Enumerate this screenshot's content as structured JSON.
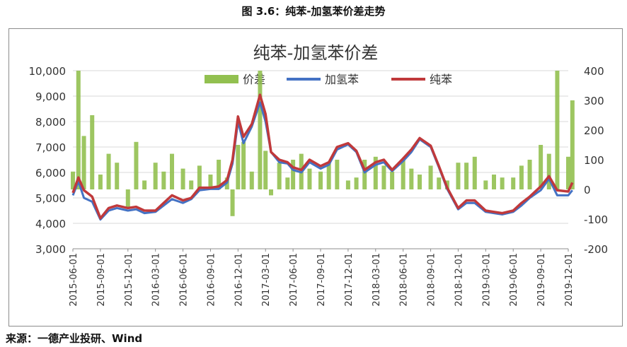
{
  "figure_caption": "图 3.6：纯苯-加氢苯价差走势",
  "source_note": "来源：一德产业投研、Wind",
  "colors": {
    "spread": "#92c050",
    "hydro": "#4472c4",
    "pure": "#c0393b"
  },
  "chart_data": {
    "type": "line",
    "title": "纯苯-加氢苯价差",
    "legend": {
      "placement": "top",
      "entries": [
        "价差",
        "加氢苯",
        "纯苯"
      ]
    },
    "y_left": {
      "min": 3000,
      "max": 10000,
      "ticks": [
        "3,000",
        "4,000",
        "5,000",
        "6,000",
        "7,000",
        "8,000",
        "9,000",
        "10,000"
      ]
    },
    "y_right": {
      "min": -200,
      "max": 400,
      "ticks": [
        "-200",
        "-100",
        "0",
        "100",
        "200",
        "300",
        "400"
      ]
    },
    "x_ticks": [
      "2015-06-01",
      "2015-09-01",
      "2015-12-01",
      "2016-03-01",
      "2016-06-01",
      "2016-09-01",
      "2016-12-01",
      "2017-03-01",
      "2017-06-01",
      "2017-09-01",
      "2017-12-01",
      "2018-03-01",
      "2018-06-01",
      "2018-09-01",
      "2018-12-01",
      "2019-03-01",
      "2019-06-01",
      "2019-09-01",
      "2019-12-01"
    ],
    "grid": true,
    "series": [
      {
        "name": "纯苯",
        "axis": "left",
        "type": "line",
        "x": [
          0,
          0.2,
          0.4,
          0.7,
          1,
          1.3,
          1.6,
          2,
          2.3,
          2.6,
          3,
          3.3,
          3.6,
          4,
          4.3,
          4.6,
          5,
          5.3,
          5.6,
          5.8,
          6,
          6.2,
          6.5,
          6.8,
          7,
          7.2,
          7.5,
          7.8,
          8,
          8.3,
          8.6,
          9,
          9.3,
          9.6,
          10,
          10.3,
          10.6,
          11,
          11.3,
          11.6,
          12,
          12.3,
          12.6,
          13,
          13.3,
          13.6,
          14,
          14.3,
          14.6,
          15,
          15.3,
          15.6,
          16,
          16.3,
          16.6,
          17,
          17.3,
          17.6,
          18,
          18.15
        ],
        "y": [
          5200,
          5800,
          5300,
          5050,
          4200,
          4600,
          4700,
          4600,
          4650,
          4500,
          4500,
          4800,
          5100,
          4900,
          5000,
          5400,
          5400,
          5450,
          5700,
          6500,
          8200,
          7400,
          7900,
          9050,
          8300,
          6800,
          6500,
          6400,
          6200,
          6100,
          6500,
          6250,
          6400,
          7000,
          7150,
          6850,
          6100,
          6400,
          6500,
          6100,
          6550,
          6900,
          7350,
          7050,
          6250,
          5400,
          4600,
          4900,
          4900,
          4500,
          4450,
          4400,
          4500,
          4800,
          5050,
          5450,
          5850,
          5300,
          5250,
          5600
        ]
      },
      {
        "name": "加氢苯",
        "axis": "left",
        "type": "line",
        "x": [
          0,
          0.2,
          0.4,
          0.7,
          1,
          1.3,
          1.6,
          2,
          2.3,
          2.6,
          3,
          3.3,
          3.6,
          4,
          4.3,
          4.6,
          5,
          5.3,
          5.6,
          5.8,
          6,
          6.2,
          6.5,
          6.8,
          7,
          7.2,
          7.5,
          7.8,
          8,
          8.3,
          8.6,
          9,
          9.3,
          9.6,
          10,
          10.3,
          10.6,
          11,
          11.3,
          11.6,
          12,
          12.3,
          12.6,
          13,
          13.3,
          13.6,
          14,
          14.3,
          14.6,
          15,
          15.3,
          15.6,
          16,
          16.3,
          16.6,
          17,
          17.3,
          17.6,
          18,
          18.15
        ],
        "y": [
          5100,
          5650,
          5000,
          4850,
          4150,
          4500,
          4600,
          4500,
          4550,
          4400,
          4450,
          4700,
          4950,
          4800,
          4950,
          5300,
          5350,
          5350,
          5600,
          6350,
          8000,
          7150,
          7800,
          8750,
          8000,
          6800,
          6400,
          6350,
          6100,
          6000,
          6400,
          6150,
          6300,
          6900,
          7100,
          6800,
          6000,
          6300,
          6400,
          6050,
          6450,
          6800,
          7300,
          7000,
          6200,
          5350,
          4550,
          4800,
          4800,
          4450,
          4400,
          4350,
          4450,
          4700,
          5000,
          5300,
          5750,
          5100,
          5100,
          5300
        ]
      },
      {
        "name": "价差",
        "axis": "right",
        "type": "bar",
        "x": [
          0,
          0.2,
          0.4,
          0.7,
          1,
          1.3,
          1.6,
          2,
          2.3,
          2.6,
          3,
          3.3,
          3.6,
          4,
          4.3,
          4.6,
          5,
          5.3,
          5.6,
          5.8,
          6,
          6.2,
          6.5,
          6.8,
          7,
          7.2,
          7.5,
          7.8,
          8,
          8.3,
          8.6,
          9,
          9.3,
          9.6,
          10,
          10.3,
          10.6,
          11,
          11.3,
          11.6,
          12,
          12.3,
          12.6,
          13,
          13.3,
          13.6,
          14,
          14.3,
          14.6,
          15,
          15.3,
          15.6,
          16,
          16.3,
          16.6,
          17,
          17.3,
          17.6,
          18,
          18.15
        ],
        "y": [
          60,
          400,
          180,
          250,
          50,
          120,
          90,
          -60,
          160,
          30,
          90,
          60,
          120,
          70,
          30,
          80,
          50,
          100,
          40,
          -90,
          150,
          160,
          60,
          400,
          130,
          -20,
          90,
          40,
          100,
          120,
          70,
          60,
          90,
          100,
          30,
          40,
          100,
          110,
          80,
          60,
          100,
          70,
          50,
          80,
          40,
          30,
          90,
          90,
          110,
          30,
          50,
          40,
          40,
          80,
          100,
          150,
          120,
          400,
          110,
          300
        ]
      }
    ]
  }
}
